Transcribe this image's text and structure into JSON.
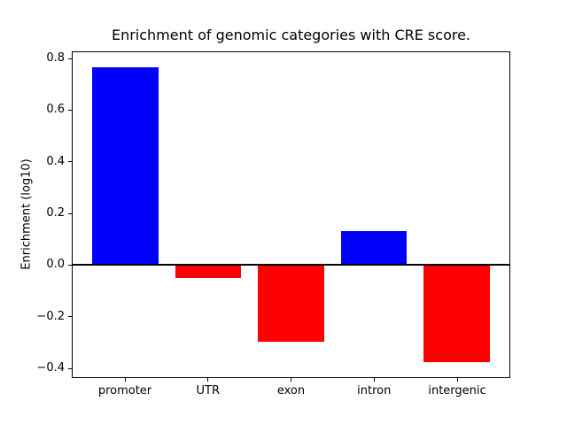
{
  "figure": {
    "background": "#ffffff"
  },
  "chart_data": {
    "type": "bar",
    "title": "Enrichment of genomic categories with CRE score.",
    "xlabel": "",
    "ylabel": "Enrichment (log10)",
    "categories": [
      "promoter",
      "UTR",
      "exon",
      "intron",
      "intergenic"
    ],
    "values": [
      0.77,
      -0.05,
      -0.3,
      0.13,
      -0.38
    ],
    "bar_colors": [
      "#0000ff",
      "#ff0000",
      "#ff0000",
      "#0000ff",
      "#ff0000"
    ],
    "positive_color": "#0000ff",
    "negative_color": "#ff0000",
    "bar_width": 0.8,
    "xlim": [
      -0.64,
      4.64
    ],
    "ylim": [
      -0.4375,
      0.8275
    ],
    "yticks": [
      {
        "value": 0.8,
        "label": "0.8"
      },
      {
        "value": 0.6,
        "label": "0.6"
      },
      {
        "value": 0.4,
        "label": "0.4"
      },
      {
        "value": 0.2,
        "label": "0.2"
      },
      {
        "value": 0.0,
        "label": "0.0"
      },
      {
        "value": -0.2,
        "label": "−0.2"
      },
      {
        "value": -0.4,
        "label": "−0.4"
      }
    ],
    "zero_line": {
      "value": 0.0,
      "color": "#000000"
    },
    "grid": false,
    "legend_position": "none",
    "axis_color": "#000000"
  }
}
